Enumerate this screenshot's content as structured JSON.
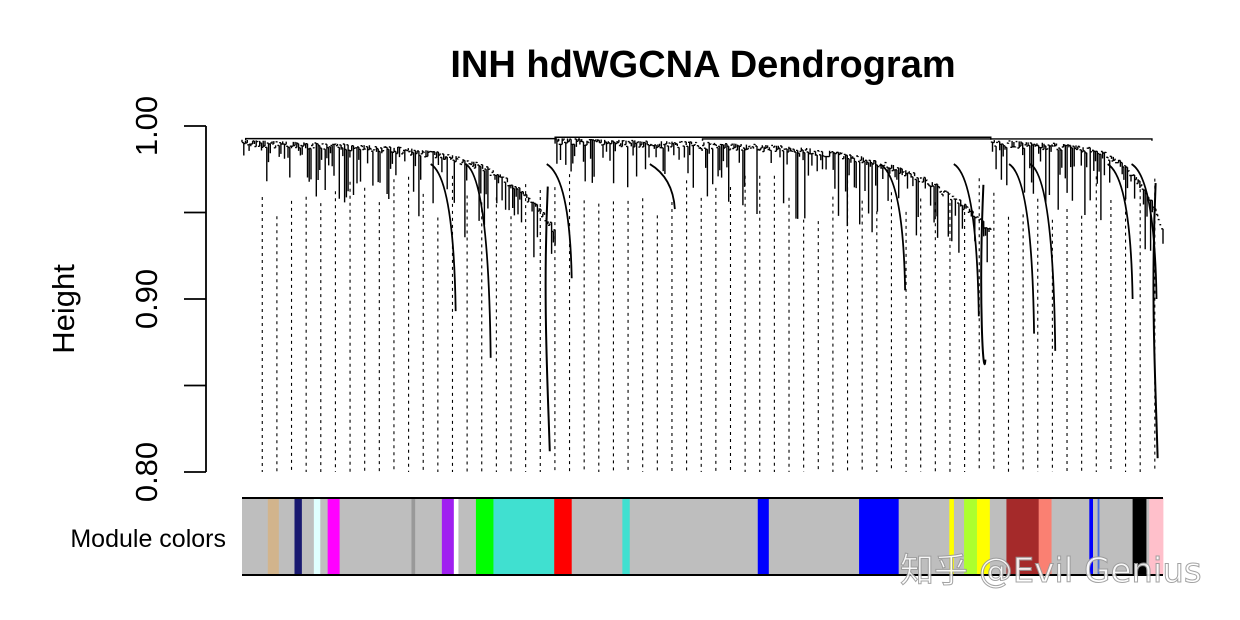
{
  "chart_data": {
    "type": "dendrogram",
    "title": "INH hdWGCNA Dendrogram",
    "ylabel": "Height",
    "ylim": [
      0.8,
      1.0
    ],
    "yticks": [
      0.8,
      0.85,
      0.9,
      0.95,
      1.0
    ],
    "ytick_labels": [
      "0.80",
      "",
      "0.90",
      "",
      "1.00"
    ],
    "module_row_label": "Module colors",
    "modules": [
      {
        "color": "#bebebe",
        "start": 0.0,
        "end": 0.028
      },
      {
        "color": "#d2b48c",
        "start": 0.028,
        "end": 0.04
      },
      {
        "color": "#bebebe",
        "start": 0.04,
        "end": 0.057
      },
      {
        "color": "#191970",
        "start": 0.057,
        "end": 0.065
      },
      {
        "color": "#bebebe",
        "start": 0.065,
        "end": 0.078
      },
      {
        "color": "#e0ffff",
        "start": 0.078,
        "end": 0.085
      },
      {
        "color": "#bebebe",
        "start": 0.085,
        "end": 0.093
      },
      {
        "color": "#ff00ff",
        "start": 0.093,
        "end": 0.106
      },
      {
        "color": "#bebebe",
        "start": 0.106,
        "end": 0.184
      },
      {
        "color": "#999999",
        "start": 0.184,
        "end": 0.188
      },
      {
        "color": "#bebebe",
        "start": 0.188,
        "end": 0.217
      },
      {
        "color": "#a020f0",
        "start": 0.217,
        "end": 0.23
      },
      {
        "color": "#ffffff",
        "start": 0.23,
        "end": 0.235
      },
      {
        "color": "#bebebe",
        "start": 0.235,
        "end": 0.254
      },
      {
        "color": "#00ff00",
        "start": 0.254,
        "end": 0.273
      },
      {
        "color": "#40e0d0",
        "start": 0.273,
        "end": 0.339
      },
      {
        "color": "#ff0000",
        "start": 0.339,
        "end": 0.358
      },
      {
        "color": "#bebebe",
        "start": 0.358,
        "end": 0.413
      },
      {
        "color": "#40e0d0",
        "start": 0.413,
        "end": 0.421
      },
      {
        "color": "#bebebe",
        "start": 0.421,
        "end": 0.56
      },
      {
        "color": "#0000ff",
        "start": 0.56,
        "end": 0.572
      },
      {
        "color": "#bebebe",
        "start": 0.572,
        "end": 0.67
      },
      {
        "color": "#0000ff",
        "start": 0.67,
        "end": 0.713
      },
      {
        "color": "#bebebe",
        "start": 0.713,
        "end": 0.768
      },
      {
        "color": "#ffff00",
        "start": 0.768,
        "end": 0.773
      },
      {
        "color": "#bebebe",
        "start": 0.773,
        "end": 0.784
      },
      {
        "color": "#adff2f",
        "start": 0.784,
        "end": 0.798
      },
      {
        "color": "#ffff00",
        "start": 0.798,
        "end": 0.812
      },
      {
        "color": "#bebebe",
        "start": 0.812,
        "end": 0.83
      },
      {
        "color": "#a52a2a",
        "start": 0.83,
        "end": 0.865
      },
      {
        "color": "#fa8072",
        "start": 0.865,
        "end": 0.879
      },
      {
        "color": "#bebebe",
        "start": 0.879,
        "end": 0.92
      },
      {
        "color": "#0000ff",
        "start": 0.92,
        "end": 0.924
      },
      {
        "color": "#bebebe",
        "start": 0.924,
        "end": 0.929
      },
      {
        "color": "#4169e1",
        "start": 0.929,
        "end": 0.931
      },
      {
        "color": "#bebebe",
        "start": 0.931,
        "end": 0.967
      },
      {
        "color": "#000000",
        "start": 0.967,
        "end": 0.982
      },
      {
        "color": "#bebebe",
        "start": 0.982,
        "end": 0.985
      },
      {
        "color": "#ffc0cb",
        "start": 0.985,
        "end": 1.0
      }
    ],
    "clusters": [
      {
        "start": 0.0,
        "end": 0.34,
        "top": 0.992,
        "decay": 0.985,
        "deep": 0.812
      },
      {
        "start": 0.34,
        "end": 0.813,
        "top": 0.993,
        "decay": 0.986,
        "deep": 0.865
      },
      {
        "start": 0.813,
        "end": 1.0,
        "top": 0.992,
        "decay": 0.987,
        "deep": 0.808
      }
    ]
  },
  "watermark": "知乎 @Evil Genius"
}
